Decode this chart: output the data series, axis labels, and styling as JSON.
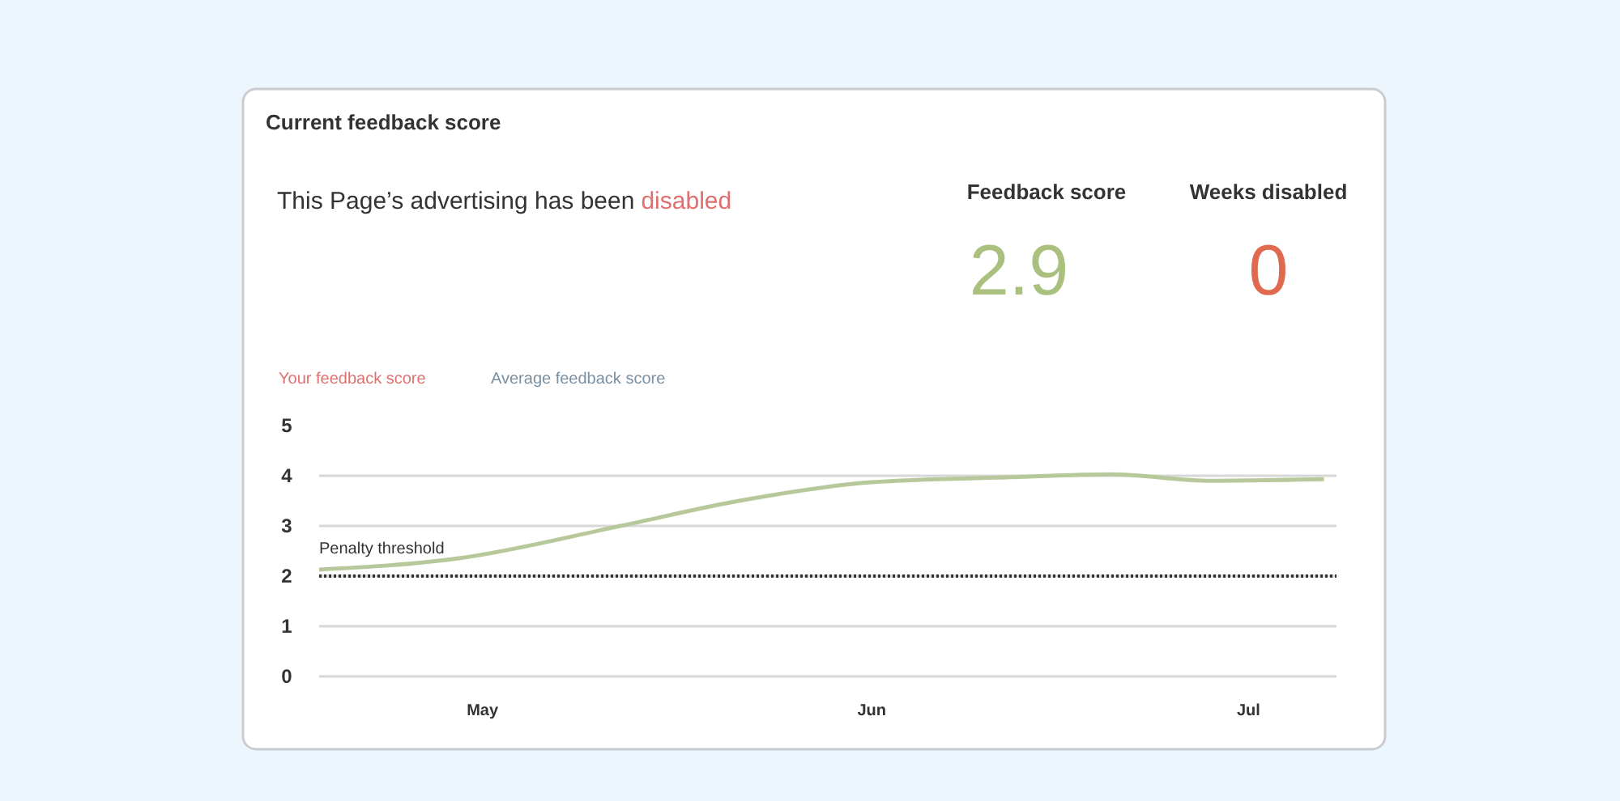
{
  "chart_data": {
    "type": "line",
    "title": "Current feedback score",
    "annotations": [
      "This Page’s advertising has been",
      "disabled",
      "Feedback score",
      "2.9",
      "Weeks disabled",
      "0",
      "Your feedback score",
      "Average feedback score"
    ],
    "x": [
      "--04-18",
      "--04-29",
      "--05-12",
      "--05-21",
      "--06-01",
      "--06-12",
      "--06-20",
      "--06-28",
      "--07-07"
    ],
    "series": [
      {
        "color": "#b7c99a",
        "values": [
          2.13,
          2.35,
          3.0,
          3.48,
          3.87,
          3.97,
          4.03,
          3.9,
          3.93
        ]
      }
    ],
    "xlim": [
      "--04-18",
      "--07-08"
    ],
    "xticks": [
      {
        "value": "--05-01",
        "label": "May"
      },
      {
        "value": "--06-01",
        "label": "Jun"
      },
      {
        "value": "--07-01",
        "label": "Jul"
      }
    ],
    "ylim": [
      0,
      5
    ],
    "yticks": [
      0,
      1,
      2,
      3,
      4,
      5
    ],
    "grid": "y",
    "marker": "none",
    "line_style": "solid",
    "ref_lines": [
      {
        "axis": "y",
        "value": 2,
        "label": "Penalty threshold",
        "color": "#333333",
        "line_style": "dotted"
      }
    ]
  }
}
